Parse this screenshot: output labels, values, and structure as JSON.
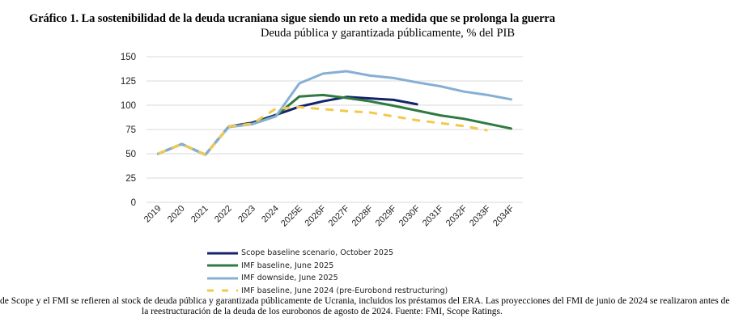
{
  "title": "Gráfico 1. La sostenibilidad de la deuda ucraniana sigue siendo un reto a medida que se prolonga la guerra",
  "subtitle": "Deuda pública y garantizada públicamente, % del PIB",
  "footnote": {
    "line1": "de Scope y el FMI se refieren al stock de deuda pública y garantizada públicamente de Ucrania, incluidos los préstamos del ERA. Las proyecciones del FMI de junio de 2024 se realizaron antes de",
    "line2": "la reestructuración de la deuda de los eurobonos de agosto de 2024. Fuente: FMI, Scope Ratings."
  },
  "chart_data": {
    "type": "line",
    "title": "Deuda pública y garantizada públicamente, % del PIB",
    "xlabel": "",
    "ylabel": "",
    "ylim": [
      0,
      150
    ],
    "yticks": [
      0,
      25,
      50,
      75,
      100,
      125,
      150
    ],
    "grid": true,
    "legend_position": "bottom",
    "categories": [
      "2019",
      "2020",
      "2021",
      "2022",
      "2023",
      "2024",
      "2025E",
      "2026F",
      "2027F",
      "2028F",
      "2029F",
      "2030F",
      "2031F",
      "2032F",
      "2033F",
      "2034F"
    ],
    "series": [
      {
        "name": "Scope baseline scenario, October 2025",
        "color": "#13236b",
        "style": "solid",
        "values": [
          50,
          60,
          49,
          78,
          82,
          90,
          98.5,
          104,
          108.5,
          107,
          105.5,
          101,
          null,
          null,
          null,
          null
        ]
      },
      {
        "name": "IMF baseline, June 2025",
        "color": "#2f7a40",
        "style": "solid",
        "values": [
          50,
          60,
          49,
          78,
          81,
          89,
          109,
          110.5,
          107.5,
          104,
          99.5,
          94.5,
          89.5,
          86,
          81,
          76
        ]
      },
      {
        "name": "IMF downside, June 2025",
        "color": "#87afd5",
        "style": "solid",
        "values": [
          50,
          60,
          49,
          77.5,
          80.5,
          88.5,
          122.5,
          132.5,
          135,
          130.5,
          128,
          123.5,
          119.5,
          114,
          110.5,
          106
        ]
      },
      {
        "name": "IMF baseline, June 2024 (pre-Eurobond restructuring)",
        "color": "#f2c94c",
        "style": "dashed",
        "values": [
          50,
          60,
          49,
          78,
          81,
          96.5,
          98,
          96,
          94,
          92.5,
          88.5,
          84.5,
          81.5,
          78.5,
          74,
          null
        ]
      }
    ]
  }
}
